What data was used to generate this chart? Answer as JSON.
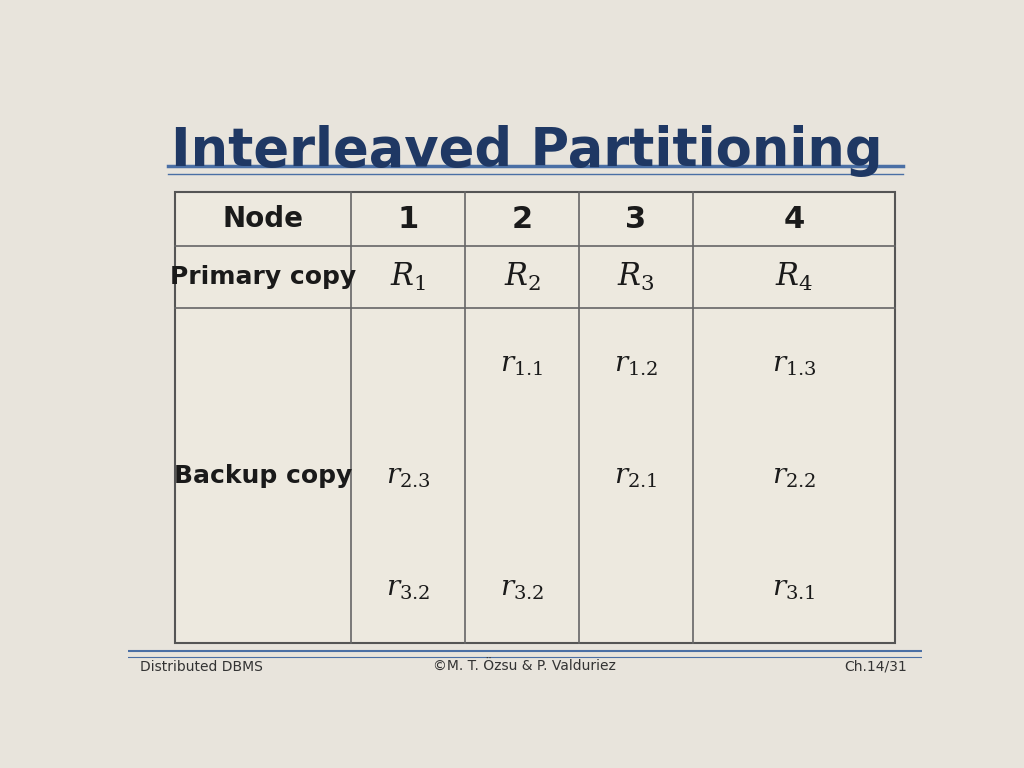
{
  "title": "Interleaved Partitioning",
  "title_color": "#1f3864",
  "bg_color": "#e8e4dc",
  "table_bg": "#ede9df",
  "line_color": "#4a6fa5",
  "footer_left": "Distributed DBMS",
  "footer_center": "©M. T. Özsu & P. Valduriez",
  "footer_right": "Ch.14/31",
  "col_headers": [
    "Node",
    "1",
    "2",
    "3",
    "4"
  ],
  "row1_cells": [
    "$R_1$",
    "$R_2$",
    "$R_3$",
    "$R_4$"
  ],
  "backup_grid": [
    [
      "",
      "",
      "",
      "",
      ""
    ],
    [
      "",
      "",
      "$r_{1.1}$",
      "$r_{1.2}$",
      "$r_{1.3}$"
    ],
    [
      "",
      "$r_{2.3}$",
      "",
      "$r_{2.1}$",
      "$r_{2.2}$"
    ],
    [
      "",
      "$r_{3.2}$",
      "$r_{3.2}$",
      "",
      "$r_{3.1}$"
    ]
  ]
}
